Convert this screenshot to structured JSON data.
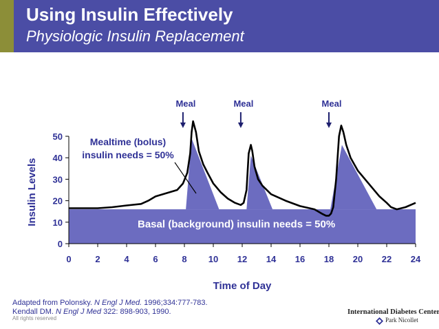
{
  "header": {
    "title": "Using Insulin Effectively",
    "subtitle": "Physiologic Insulin Replacement",
    "colors": {
      "background": "#4b4da5",
      "accent": "#8c8e38"
    }
  },
  "chart_data": {
    "type": "area",
    "xlabel": "Time of Day",
    "ylabel": "Insulin Levels",
    "xlim": [
      0,
      24
    ],
    "ylim": [
      0,
      50
    ],
    "x_ticks": [
      0,
      2,
      4,
      6,
      8,
      10,
      12,
      14,
      16,
      18,
      20,
      22,
      24
    ],
    "y_ticks": [
      0,
      10,
      20,
      30,
      40,
      50
    ],
    "grid": false,
    "colors": {
      "fill": "#6c6cc0",
      "curve": "#000000",
      "text": "#2f3196",
      "axis": "#000000"
    },
    "basal": {
      "label": "Basal (background) insulin needs = 50%",
      "x": [
        0,
        24
      ],
      "y": 16
    },
    "bolus": {
      "label_line1": "Mealtime (bolus)",
      "label_line2": "insulin needs = 50%",
      "peaks": [
        {
          "x": [
            8.1,
            8.5,
            10.4
          ],
          "y": [
            16,
            49,
            16
          ]
        },
        {
          "x": [
            12.3,
            12.6,
            14.1
          ],
          "y": [
            16,
            41,
            16
          ]
        },
        {
          "x": [
            18.1,
            18.9,
            21.3
          ],
          "y": [
            16,
            46,
            16
          ]
        }
      ]
    },
    "meals": [
      {
        "label": "Meal",
        "x": 7.9
      },
      {
        "label": "Meal",
        "x": 11.9
      },
      {
        "label": "Meal",
        "x": 18.0
      }
    ],
    "curve": {
      "x": [
        0,
        2,
        3,
        4,
        5,
        5.5,
        6,
        7,
        7.5,
        7.9,
        8.2,
        8.4,
        8.5,
        8.6,
        8.8,
        9.0,
        9.3,
        9.6,
        10,
        10.5,
        11,
        11.5,
        11.9,
        12.1,
        12.3,
        12.45,
        12.6,
        12.7,
        12.85,
        13.1,
        13.4,
        14,
        15,
        16,
        17,
        17.5,
        17.8,
        18.0,
        18.15,
        18.3,
        18.5,
        18.7,
        18.85,
        19.0,
        19.2,
        19.5,
        20,
        20.5,
        21,
        21.5,
        22,
        22.3,
        22.7,
        23.3,
        24
      ],
      "y": [
        16.5,
        16.5,
        17,
        17.8,
        18.5,
        20,
        22,
        24,
        25,
        28,
        33,
        42,
        52,
        57,
        52,
        43,
        37,
        33,
        28,
        24,
        21,
        19,
        18,
        19,
        25,
        42,
        46,
        43,
        36,
        30,
        27,
        23,
        20,
        17.5,
        16,
        14,
        13,
        13,
        14,
        17,
        30,
        50,
        55,
        52,
        46,
        40,
        34,
        30,
        26,
        22,
        19,
        17,
        16,
        17,
        19
      ]
    },
    "references": [
      {
        "prefix": "Adapted from Polonsky. ",
        "journal": "N Engl J Med.",
        "suffix": " 1996;334:777-783."
      },
      {
        "prefix": "Kendall DM.  ",
        "journal": "N Engl J Med",
        "suffix": " 322: 898-903, 1990."
      }
    ],
    "rights": "All rights reserved",
    "org": "International Diabetes Center",
    "org_sub": "Park Nicollet"
  }
}
